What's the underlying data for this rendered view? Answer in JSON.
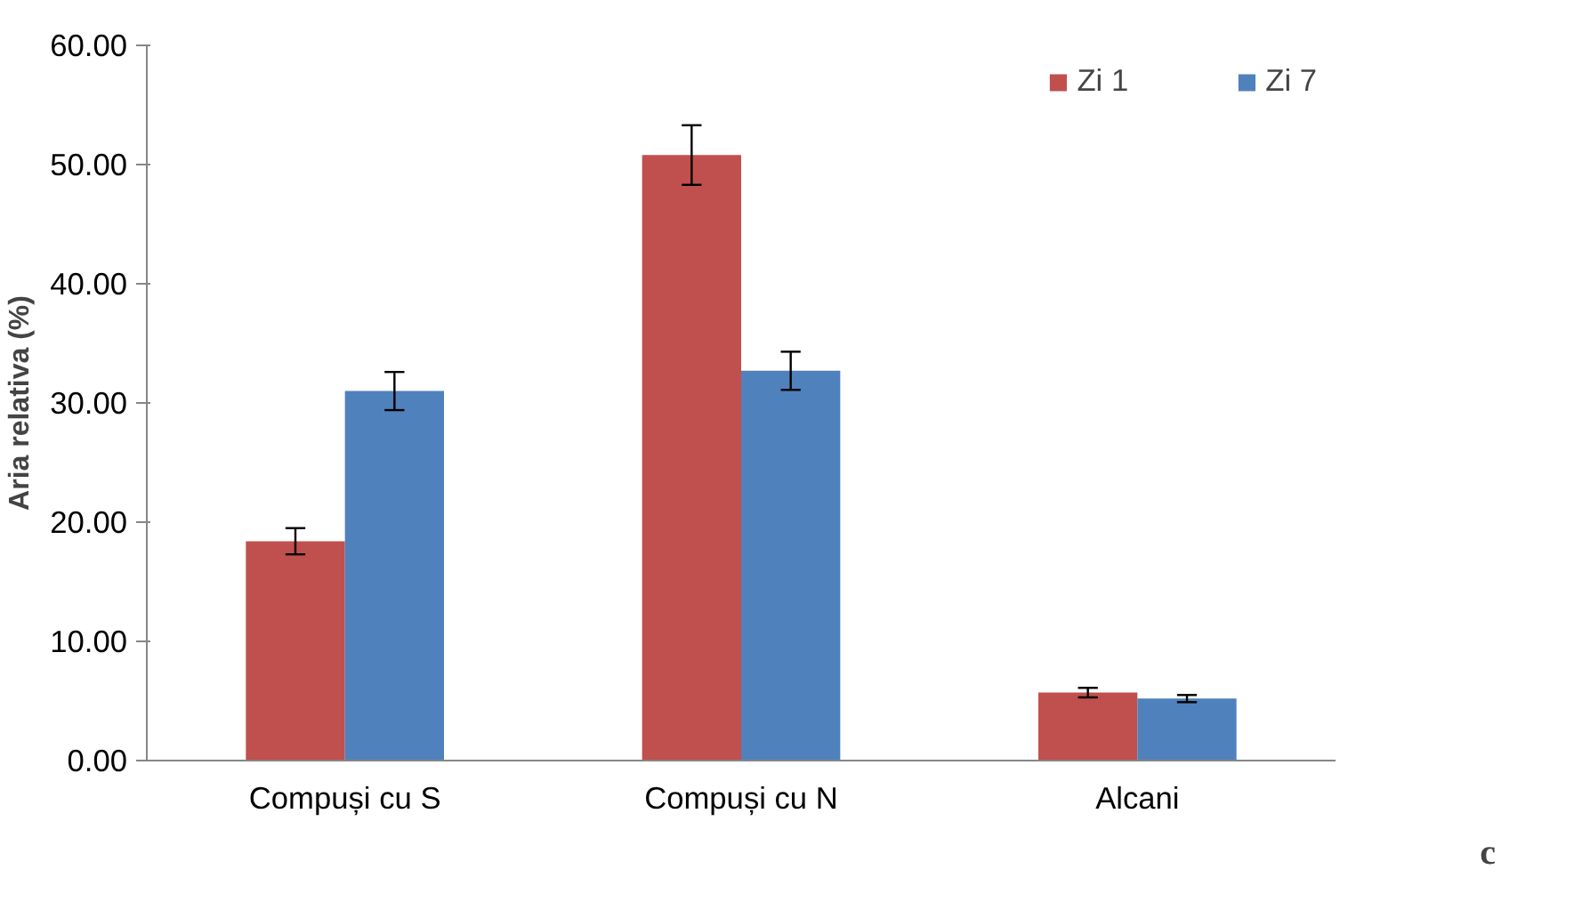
{
  "chart_data": {
    "type": "bar",
    "ylabel": "Aria relativa (%)",
    "categories": [
      "Compuși cu S",
      "Compuși cu N",
      "Alcani"
    ],
    "series": [
      {
        "name": "Zi 1",
        "color": "#c0504d",
        "values": [
          18.4,
          50.8,
          5.7
        ],
        "errors": [
          1.1,
          2.5,
          0.4
        ]
      },
      {
        "name": "Zi 7",
        "color": "#4f81bd",
        "values": [
          31.0,
          32.7,
          5.2
        ],
        "errors": [
          1.6,
          1.6,
          0.3
        ]
      }
    ],
    "ylim": [
      0,
      60
    ],
    "yticks": [
      {
        "value": 0,
        "label": "0.00"
      },
      {
        "value": 10,
        "label": "10.00"
      },
      {
        "value": 20,
        "label": "20.00"
      },
      {
        "value": 30,
        "label": "30.00"
      },
      {
        "value": 40,
        "label": "40.00"
      },
      {
        "value": 50,
        "label": "50.00"
      },
      {
        "value": 60,
        "label": "60.00"
      }
    ],
    "grid": false,
    "legend": "top right",
    "annotations": [
      "c"
    ]
  }
}
